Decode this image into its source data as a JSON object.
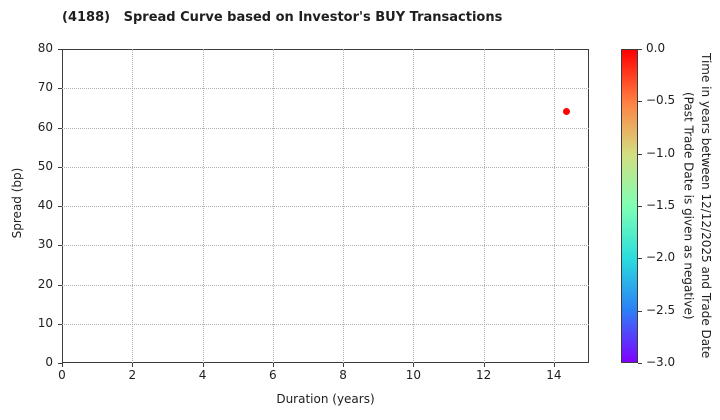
{
  "title": "(4188)   Spread Curve based on Investor's BUY Transactions",
  "chart_data": {
    "type": "scatter",
    "title": "(4188)   Spread Curve based on Investor's BUY Transactions",
    "xlabel": "Duration (years)",
    "ylabel": "Spread (bp)",
    "xlim": [
      0,
      15
    ],
    "ylim": [
      0,
      80
    ],
    "xticks": [
      0,
      2,
      4,
      6,
      8,
      10,
      12,
      14
    ],
    "yticks": [
      0,
      10,
      20,
      30,
      40,
      50,
      60,
      70,
      80
    ],
    "grid": true,
    "gridline_color": "#b0b0b0",
    "spine_color": "#3c3c3c",
    "points": [
      {
        "x": 14.35,
        "y": 64.0,
        "color": "#ff0000",
        "time_value": 0.0
      }
    ],
    "colorbar": {
      "label_line1": "Time in years between 12/12/2025 and Trade Date",
      "label_line2": "(Past Trade Date is given as negative)",
      "range_top": 0.0,
      "range_bottom": -3.0,
      "tick_values": [
        0.0,
        -0.5,
        -1.0,
        -1.5,
        -2.0,
        -2.5,
        -3.0
      ],
      "tick_labels": [
        "0.0",
        "−0.5",
        "−1.0",
        "−1.5",
        "−2.0",
        "−2.5",
        "−3.0"
      ],
      "gradient_stops": [
        {
          "pos": 0,
          "color": "#ff0000"
        },
        {
          "pos": 16.7,
          "color": "#ff8042"
        },
        {
          "pos": 33.3,
          "color": "#d4dd80"
        },
        {
          "pos": 50,
          "color": "#80ffb4"
        },
        {
          "pos": 66.7,
          "color": "#2bdddd"
        },
        {
          "pos": 83.3,
          "color": "#2b80f6"
        },
        {
          "pos": 100,
          "color": "#8000ff"
        }
      ]
    }
  }
}
